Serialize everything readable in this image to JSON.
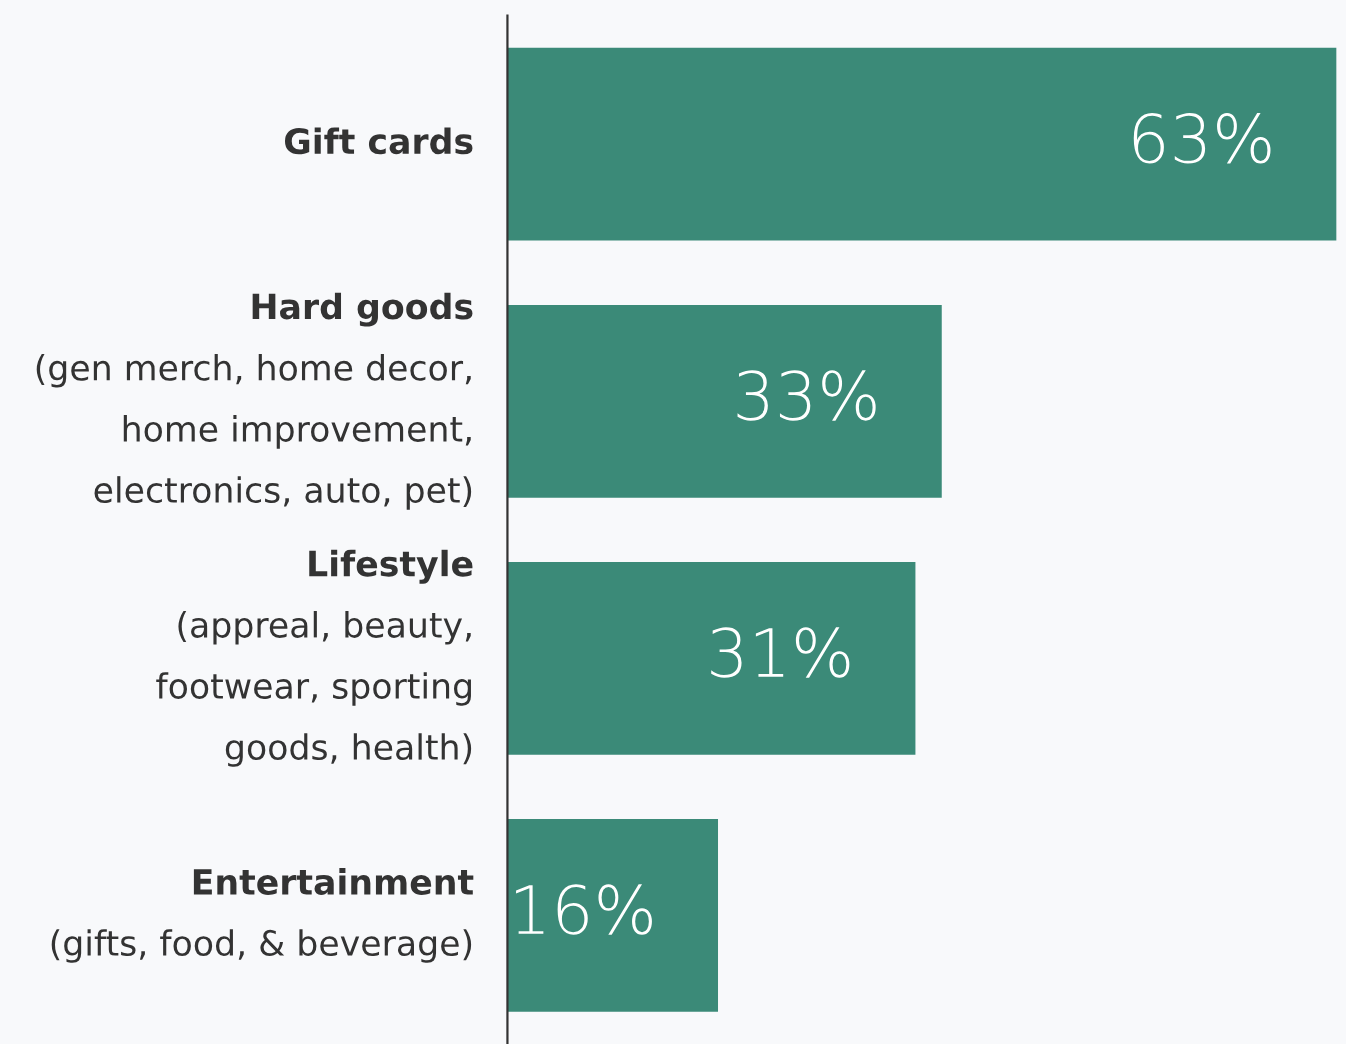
{
  "chart_data": {
    "type": "bar",
    "orientation": "horizontal",
    "categories": [
      "Gift cards",
      "Hard goods\n(gen merch, home decor,\nhome improvement,\nelectronics, auto, pet)",
      "Lifestyle\n(appreal, beauty,\nfootwear, sporting\ngoods, health)",
      "Entertainment\n(gifts, food, & beverage)"
    ],
    "values": [
      63,
      33,
      31,
      16
    ],
    "value_labels": [
      "63%",
      "33%",
      "31%",
      "16%"
    ],
    "color": "#3b8a78"
  }
}
